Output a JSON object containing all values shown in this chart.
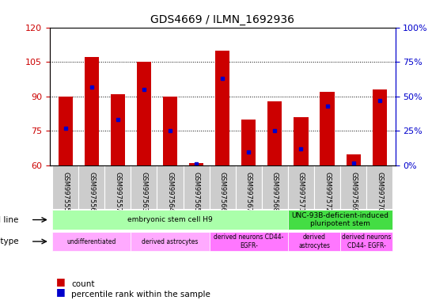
{
  "title": "GDS4669 / ILMN_1692936",
  "samples": [
    "GSM997555",
    "GSM997556",
    "GSM997557",
    "GSM997563",
    "GSM997564",
    "GSM997565",
    "GSM997566",
    "GSM997567",
    "GSM997568",
    "GSM997571",
    "GSM997572",
    "GSM997569",
    "GSM997570"
  ],
  "counts": [
    90,
    107,
    91,
    105,
    90,
    61,
    110,
    80,
    88,
    81,
    92,
    65,
    93
  ],
  "percentile_ranks": [
    27,
    57,
    33,
    55,
    25,
    1,
    63,
    10,
    25,
    12,
    43,
    2,
    47
  ],
  "ylim_left": [
    60,
    120
  ],
  "ylim_right": [
    0,
    100
  ],
  "yticks_left": [
    60,
    75,
    90,
    105,
    120
  ],
  "yticks_right": [
    0,
    25,
    50,
    75,
    100
  ],
  "bar_color": "#cc0000",
  "marker_color": "#0000cc",
  "cell_line_groups": [
    {
      "label": "embryonic stem cell H9",
      "start": 0,
      "end": 9,
      "color": "#aaffaa"
    },
    {
      "label": "UNC-93B-deficient-induced\npluripotent stem",
      "start": 9,
      "end": 13,
      "color": "#44dd44"
    }
  ],
  "cell_type_groups": [
    {
      "label": "undifferentiated",
      "start": 0,
      "end": 3,
      "color": "#ffaaff"
    },
    {
      "label": "derived astrocytes",
      "start": 3,
      "end": 6,
      "color": "#ffaaff"
    },
    {
      "label": "derived neurons CD44-\nEGFR-",
      "start": 6,
      "end": 9,
      "color": "#ff77ff"
    },
    {
      "label": "derived\nastrocytes",
      "start": 9,
      "end": 11,
      "color": "#ff77ff"
    },
    {
      "label": "derived neurons\nCD44- EGFR-",
      "start": 11,
      "end": 13,
      "color": "#ff77ff"
    }
  ],
  "legend_items": [
    {
      "label": "count",
      "color": "#cc0000"
    },
    {
      "label": "percentile rank within the sample",
      "color": "#0000cc"
    }
  ],
  "left_axis_color": "#cc0000",
  "right_axis_color": "#0000cc",
  "tick_label_bg": "#cccccc"
}
